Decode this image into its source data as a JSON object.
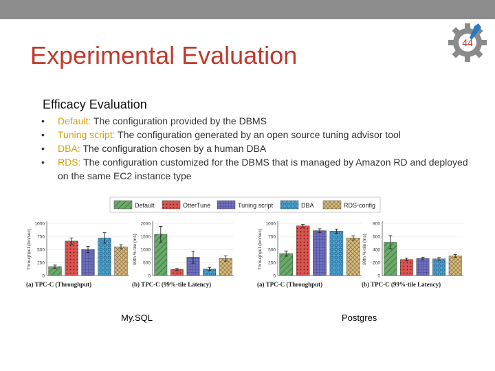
{
  "slide": {
    "title": "Experimental Evaluation",
    "page_number": "44",
    "subtitle": "Efficacy Evaluation",
    "bullets": [
      {
        "term": "Default:",
        "text": " The configuration provided by the DBMS"
      },
      {
        "term": "Tuning script:",
        "text": " The configuration generated by an open source tuning advisor tool"
      },
      {
        "term": "DBA:",
        "text": " The configuration chosen by a human DBA"
      },
      {
        "term": "RDS:",
        "text": " The configuration customized for the DBMS that is managed by Amazon RD and deployed on the same EC2 instance type"
      }
    ],
    "db_labels": [
      "My.SQL",
      "Postgres"
    ]
  },
  "legend": [
    {
      "name": "Default",
      "color": "#6aa86a",
      "pattern": "hatch"
    },
    {
      "name": "OtterTune",
      "color": "#d9534f",
      "pattern": "dots"
    },
    {
      "name": "Tuning script",
      "color": "#6f6fbf",
      "pattern": "grid"
    },
    {
      "name": "DBA",
      "color": "#4fa3d1",
      "pattern": "circles"
    },
    {
      "name": "RDS-config",
      "color": "#d9bd82",
      "pattern": "cross"
    }
  ],
  "chart_data": [
    {
      "type": "bar",
      "database": "My.SQL",
      "title": "(a) TPC-C (Throughput)",
      "ylabel": "Throughput (txn/sec)",
      "categories": [
        "Default",
        "OtterTune",
        "Tuning script",
        "DBA",
        "RDS-config"
      ],
      "values": [
        170,
        660,
        500,
        720,
        550
      ],
      "errors": [
        30,
        60,
        60,
        100,
        40
      ],
      "ylim": [
        0,
        1000
      ],
      "yticks": [
        "0",
        "250",
        "500",
        "750",
        "1000"
      ]
    },
    {
      "type": "bar",
      "database": "My.SQL",
      "title": "(b) TPC-C (99%-tile Latency)",
      "ylabel": "99th %-tile (ms)",
      "categories": [
        "Default",
        "OtterTune",
        "Tuning script",
        "DBA",
        "RDS-config"
      ],
      "values": [
        1580,
        230,
        700,
        250,
        650
      ],
      "errors": [
        300,
        40,
        230,
        60,
        100
      ],
      "ylim": [
        0,
        2000
      ],
      "yticks": [
        "0",
        "500",
        "1000",
        "1500",
        "2000"
      ]
    },
    {
      "type": "bar",
      "database": "Postgres",
      "title": "(a) TPC-C (Throughput)",
      "ylabel": "Throughput (txn/sec)",
      "categories": [
        "Default",
        "OtterTune",
        "Tuning script",
        "DBA",
        "RDS-config"
      ],
      "values": [
        420,
        950,
        860,
        850,
        720
      ],
      "errors": [
        50,
        30,
        35,
        40,
        40
      ],
      "ylim": [
        0,
        1000
      ],
      "yticks": [
        "0",
        "250",
        "500",
        "750",
        "1000"
      ]
    },
    {
      "type": "bar",
      "database": "Postgres",
      "title": "(b) TPC-C (99%-tile Latency)",
      "ylabel": "99th %-tile (ms)",
      "categories": [
        "Default",
        "OtterTune",
        "Tuning script",
        "DBA",
        "RDS-config"
      ],
      "values": [
        510,
        245,
        260,
        255,
        300
      ],
      "errors": [
        100,
        20,
        20,
        20,
        20
      ],
      "ylim": [
        0,
        800
      ],
      "yticks": [
        "0",
        "200",
        "400",
        "600",
        "800"
      ]
    }
  ]
}
